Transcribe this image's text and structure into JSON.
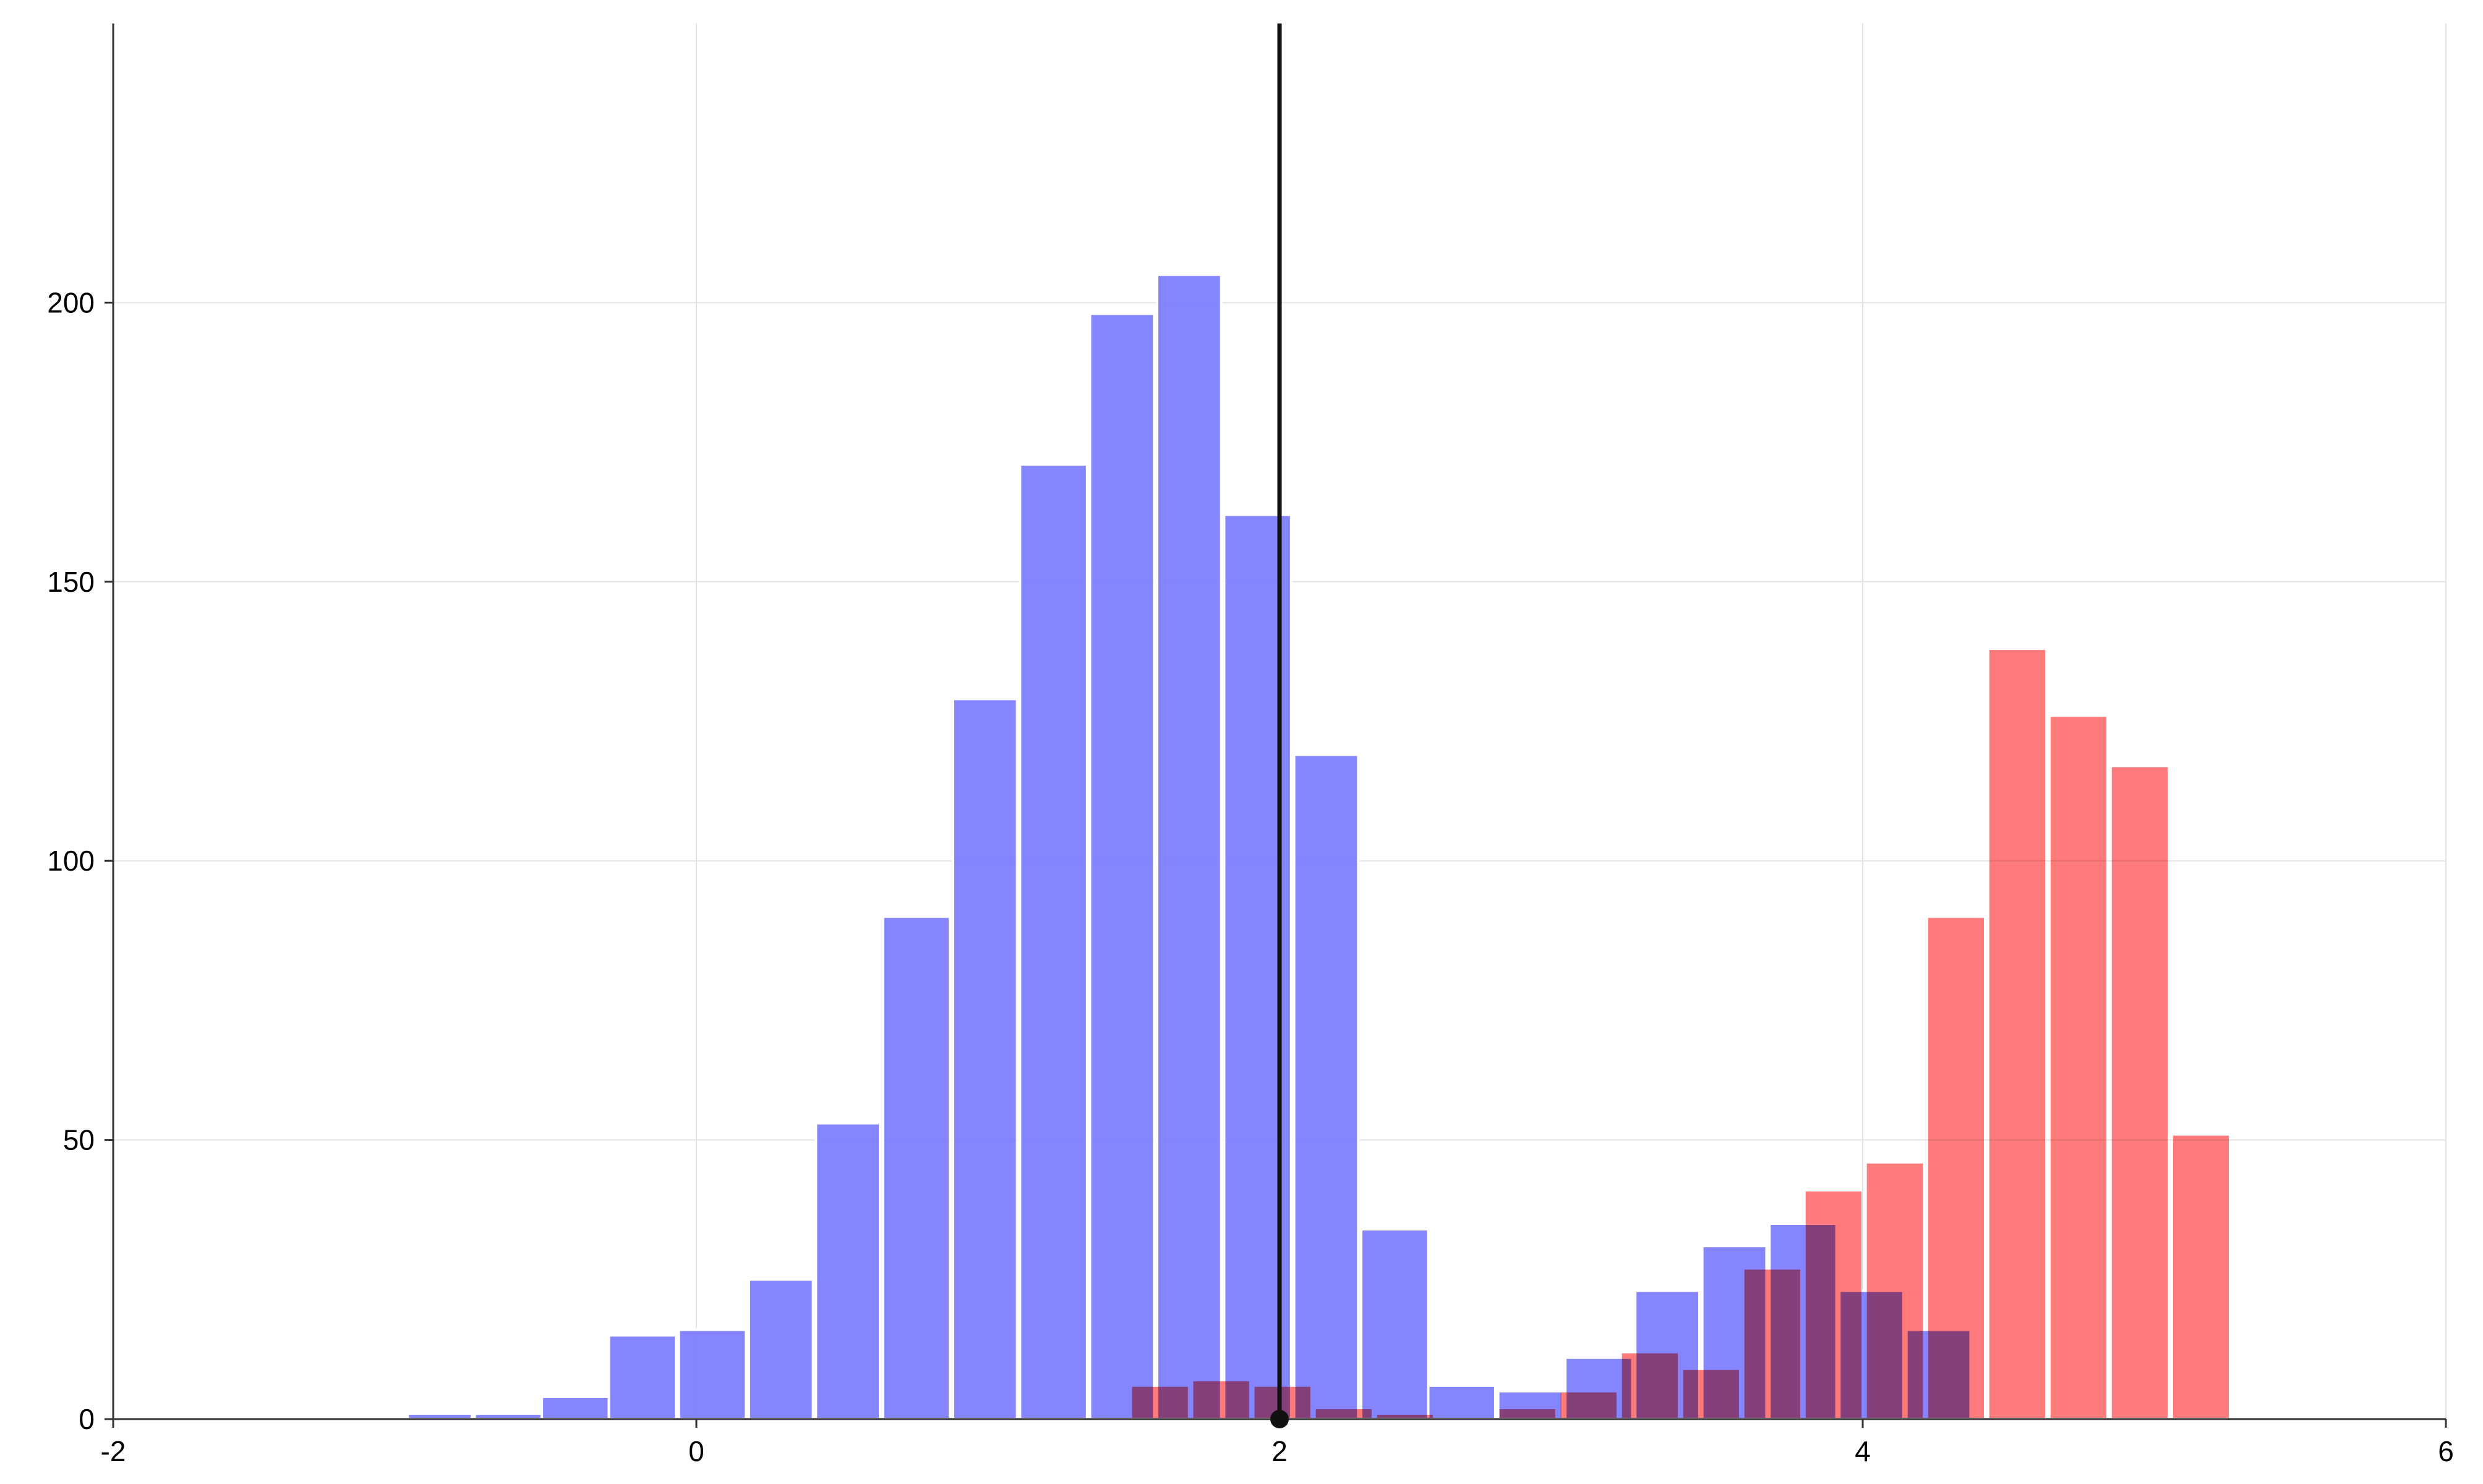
{
  "chart_data": {
    "type": "bar",
    "title": "",
    "xlabel": "",
    "ylabel": "",
    "xlim": [
      -2,
      6
    ],
    "ylim": [
      0,
      250
    ],
    "grid": true,
    "x_ticks": [
      "-2",
      "0",
      "2",
      "4",
      "6"
    ],
    "y_ticks": [
      "0",
      "50",
      "100",
      "150",
      "200"
    ],
    "threshold_line": {
      "x": 2,
      "color": "#111111"
    },
    "series": [
      {
        "color": "#7b7bff",
        "bin_width": 0.233,
        "bins": [
          {
            "x0": -0.99,
            "x1": -0.77,
            "count": 1
          },
          {
            "x0": -0.76,
            "x1": -0.53,
            "count": 1
          },
          {
            "x0": -0.53,
            "x1": -0.3,
            "count": 4
          },
          {
            "x0": -0.3,
            "x1": -0.07,
            "count": 15
          },
          {
            "x0": -0.06,
            "x1": 0.17,
            "count": 16
          },
          {
            "x0": 0.18,
            "x1": 0.4,
            "count": 25
          },
          {
            "x0": 0.41,
            "x1": 0.63,
            "count": 53
          },
          {
            "x0": 0.64,
            "x1": 0.87,
            "count": 90
          },
          {
            "x0": 0.88,
            "x1": 1.1,
            "count": 129
          },
          {
            "x0": 1.11,
            "x1": 1.34,
            "count": 171
          },
          {
            "x0": 1.35,
            "x1": 1.57,
            "count": 198
          },
          {
            "x0": 1.58,
            "x1": 1.8,
            "count": 205
          },
          {
            "x0": 1.81,
            "x1": 2.04,
            "count": 162
          },
          {
            "x0": 2.05,
            "x1": 2.27,
            "count": 119
          },
          {
            "x0": 2.28,
            "x1": 2.51,
            "count": 34
          },
          {
            "x0": 2.51,
            "x1": 2.74,
            "count": 6
          },
          {
            "x0": 2.75,
            "x1": 2.97,
            "count": 5
          },
          {
            "x0": 2.98,
            "x1": 3.21,
            "count": 11
          },
          {
            "x0": 3.22,
            "x1": 3.44,
            "count": 23
          },
          {
            "x0": 3.45,
            "x1": 3.67,
            "count": 31
          },
          {
            "x0": 3.68,
            "x1": 3.91,
            "count": 35
          },
          {
            "x0": 3.92,
            "x1": 4.14,
            "count": 23
          },
          {
            "x0": 4.15,
            "x1": 4.37,
            "count": 16
          }
        ]
      },
      {
        "color": "#ff7070",
        "bin_width": 0.21,
        "bins": [
          {
            "x0": 1.49,
            "x1": 1.69,
            "count": 6
          },
          {
            "x0": 1.7,
            "x1": 1.9,
            "count": 7
          },
          {
            "x0": 1.91,
            "x1": 2.11,
            "count": 6
          },
          {
            "x0": 2.12,
            "x1": 2.32,
            "count": 2
          },
          {
            "x0": 2.33,
            "x1": 2.53,
            "count": 1
          },
          {
            "x0": 2.75,
            "x1": 2.95,
            "count": 2
          },
          {
            "x0": 2.96,
            "x1": 3.16,
            "count": 5
          },
          {
            "x0": 3.17,
            "x1": 3.37,
            "count": 12
          },
          {
            "x0": 3.38,
            "x1": 3.58,
            "count": 9
          },
          {
            "x0": 3.59,
            "x1": 3.79,
            "count": 27
          },
          {
            "x0": 3.8,
            "x1": 4.0,
            "count": 41
          },
          {
            "x0": 4.01,
            "x1": 4.21,
            "count": 46
          },
          {
            "x0": 4.22,
            "x1": 4.42,
            "count": 90
          },
          {
            "x0": 4.43,
            "x1": 4.63,
            "count": 138
          },
          {
            "x0": 4.64,
            "x1": 4.84,
            "count": 126
          },
          {
            "x0": 4.85,
            "x1": 5.05,
            "count": 117
          },
          {
            "x0": 5.06,
            "x1": 5.26,
            "count": 51
          }
        ]
      }
    ]
  }
}
